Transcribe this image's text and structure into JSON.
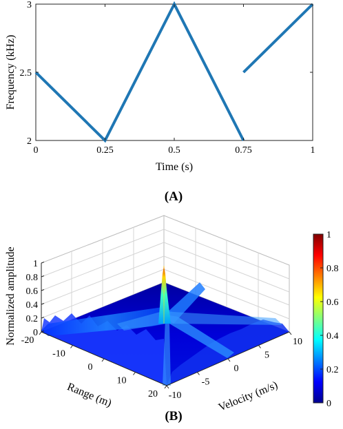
{
  "chart_data": [
    {
      "type": "line",
      "panel_label": "(A)",
      "xlabel": "Time (s)",
      "ylabel": "Frequency (kHz)",
      "xlim": [
        0,
        1
      ],
      "ylim": [
        2,
        3
      ],
      "xticks": [
        "0",
        "0.25",
        "0.5",
        "0.75",
        "1"
      ],
      "yticks": [
        "2",
        "2.5",
        "3"
      ],
      "grid": false,
      "color": "#1f77b4",
      "series": [
        {
          "x": [
            0,
            0.25,
            0.5,
            0.75
          ],
          "y": [
            2.5,
            2.0,
            3.0,
            2.0
          ]
        },
        {
          "x": [
            0.75,
            1.0
          ],
          "y": [
            2.5,
            3.0
          ]
        }
      ]
    },
    {
      "type": "surface",
      "panel_label": "(B)",
      "xlabel": "Range (m)",
      "ylabel": "Velocity (m/s)",
      "zlabel": "Normalized amplitude",
      "range_ticks": [
        "-20",
        "-10",
        "0",
        "10",
        "20"
      ],
      "velocity_ticks": [
        "-10",
        "-5",
        "0",
        "5",
        "10"
      ],
      "z_ticks": [
        "0",
        "0.2",
        "0.4",
        "0.6",
        "0.8",
        "1"
      ],
      "xlim": [
        -20,
        20
      ],
      "ylim": [
        -10,
        10
      ],
      "zlim": [
        0,
        1
      ],
      "grid": true,
      "peak": {
        "range": 0,
        "velocity": 0,
        "amplitude": 1.0
      },
      "colorbar": {
        "ticks": [
          "0",
          "0.2",
          "0.4",
          "0.6",
          "0.8",
          "1"
        ],
        "range": [
          0,
          1
        ],
        "colormap": "jet"
      }
    }
  ]
}
